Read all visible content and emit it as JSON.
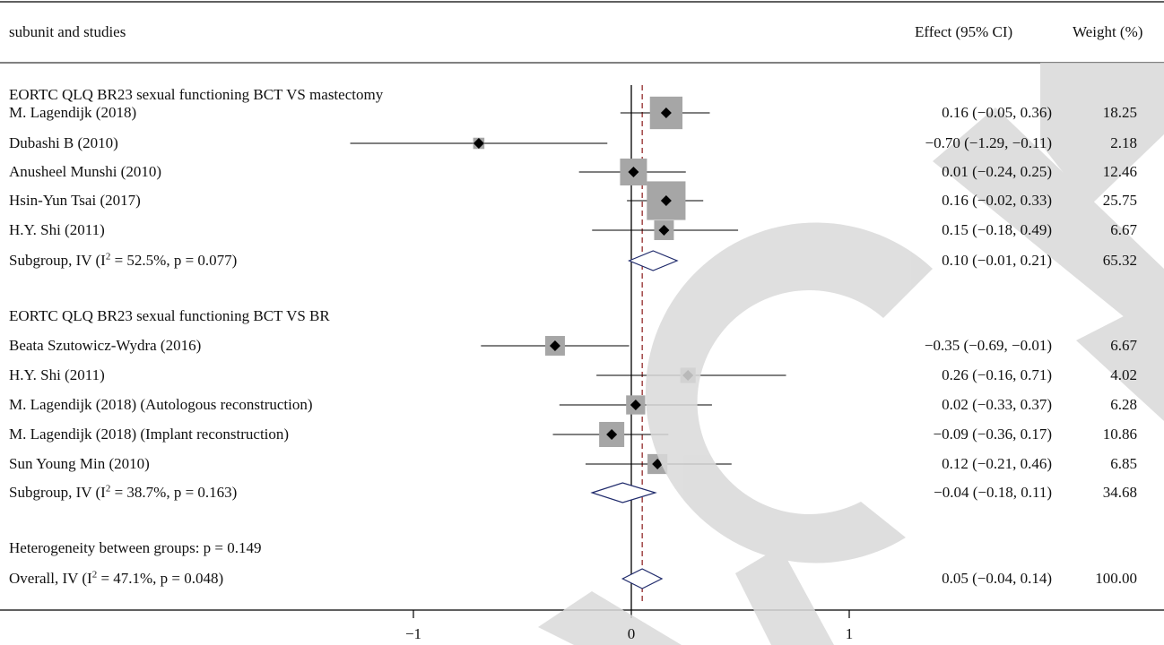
{
  "header": {
    "label_col": "subunit and studies",
    "effect_col": "Effect (95% CI)",
    "weight_col": "Weight (%)"
  },
  "rows": [
    {
      "label": "EORTC QLQ BR23 sexual functioning BCT VS mastectomy"
    },
    {
      "label": "M. Lagendijk (2018)",
      "effect_text": "0.16 (−0.05, 0.36)",
      "weight_text": "18.25"
    },
    {
      "label": "Dubashi B (2010)",
      "effect_text": "−0.70 (−1.29, −0.11)",
      "weight_text": "2.18"
    },
    {
      "label": "Anusheel Munshi (2010)",
      "effect_text": "0.01 (−0.24, 0.25)",
      "weight_text": "12.46"
    },
    {
      "label": "Hsin-Yun Tsai (2017)",
      "effect_text": "0.16 (−0.02, 0.33)",
      "weight_text": "25.75"
    },
    {
      "label": "H.Y. Shi (2011)",
      "effect_text": "0.15 (−0.18, 0.49)",
      "weight_text": "6.67"
    },
    {
      "label": "Subgroup, IV (I² = 52.5%, p = 0.077)",
      "effect_text": "0.10 (−0.01, 0.21)",
      "weight_text": "65.32"
    },
    {
      "label": "EORTC QLQ BR23 sexual functioning BCT VS BR"
    },
    {
      "label": "Beata Szutowicz-Wydra (2016)",
      "effect_text": "−0.35 (−0.69, −0.01)",
      "weight_text": "6.67"
    },
    {
      "label": "H.Y. Shi (2011)",
      "effect_text": "0.26 (−0.16, 0.71)",
      "weight_text": "4.02"
    },
    {
      "label": "M. Lagendijk (2018) (Autologous reconstruction)",
      "effect_text": "0.02 (−0.33, 0.37)",
      "weight_text": "6.28"
    },
    {
      "label": "M. Lagendijk (2018) (Implant reconstruction)",
      "effect_text": "−0.09 (−0.36, 0.17)",
      "weight_text": "10.86"
    },
    {
      "label": "Sun Young Min (2010)",
      "effect_text": "0.12 (−0.21, 0.46)",
      "weight_text": "6.85"
    },
    {
      "label": "Subgroup, IV (I² = 38.7%, p = 0.163)",
      "effect_text": "−0.04 (−0.18, 0.11)",
      "weight_text": "34.68"
    },
    {
      "label": "Heterogeneity between groups: p = 0.149"
    },
    {
      "label": "Overall, IV (I² = 47.1%, p = 0.048)",
      "effect_text": "0.05 (−0.04, 0.14)",
      "weight_text": "100.00"
    }
  ],
  "chart_data": {
    "type": "forest",
    "x_ticks": [
      -1,
      0,
      1
    ],
    "x_tick_labels": [
      "−1",
      "0",
      "1"
    ],
    "xlim": [
      -1.2,
      1.6
    ],
    "reference_line": 0,
    "overall_line": 0.05,
    "studies": [
      {
        "name": "M. Lagendijk (2018)",
        "group": "BCT VS mastectomy",
        "effect": 0.16,
        "lower": -0.05,
        "upper": 0.36,
        "weight": 18.25
      },
      {
        "name": "Dubashi B (2010)",
        "group": "BCT VS mastectomy",
        "effect": -0.7,
        "lower": -1.29,
        "upper": -0.11,
        "weight": 2.18
      },
      {
        "name": "Anusheel Munshi (2010)",
        "group": "BCT VS mastectomy",
        "effect": 0.01,
        "lower": -0.24,
        "upper": 0.25,
        "weight": 12.46
      },
      {
        "name": "Hsin-Yun Tsai (2017)",
        "group": "BCT VS mastectomy",
        "effect": 0.16,
        "lower": -0.02,
        "upper": 0.33,
        "weight": 25.75
      },
      {
        "name": "H.Y. Shi (2011)",
        "group": "BCT VS mastectomy",
        "effect": 0.15,
        "lower": -0.18,
        "upper": 0.49,
        "weight": 6.67
      },
      {
        "name": "Beata Szutowicz-Wydra (2016)",
        "group": "BCT VS BR",
        "effect": -0.35,
        "lower": -0.69,
        "upper": -0.01,
        "weight": 6.67
      },
      {
        "name": "H.Y. Shi (2011)",
        "group": "BCT VS BR",
        "effect": 0.26,
        "lower": -0.16,
        "upper": 0.71,
        "weight": 4.02
      },
      {
        "name": "M. Lagendijk (2018) (Autologous reconstruction)",
        "group": "BCT VS BR",
        "effect": 0.02,
        "lower": -0.33,
        "upper": 0.37,
        "weight": 6.28
      },
      {
        "name": "M. Lagendijk (2018) (Implant reconstruction)",
        "group": "BCT VS BR",
        "effect": -0.09,
        "lower": -0.36,
        "upper": 0.17,
        "weight": 10.86
      },
      {
        "name": "Sun Young Min (2010)",
        "group": "BCT VS BR",
        "effect": 0.12,
        "lower": -0.21,
        "upper": 0.46,
        "weight": 6.85
      }
    ],
    "pooled": [
      {
        "name": "Subgroup BCT VS mastectomy",
        "effect": 0.1,
        "lower": -0.01,
        "upper": 0.21,
        "weight": 65.32
      },
      {
        "name": "Subgroup BCT VS BR",
        "effect": -0.04,
        "lower": -0.18,
        "upper": 0.11,
        "weight": 34.68
      },
      {
        "name": "Overall",
        "effect": 0.05,
        "lower": -0.04,
        "upper": 0.14,
        "weight": 100.0
      }
    ],
    "colors": {
      "marker_box": "#a6a6a6",
      "pooled_diamond": "#1f2a6b",
      "overall_line": "#8b1a1a",
      "watermark": "#d9d9d9"
    }
  }
}
